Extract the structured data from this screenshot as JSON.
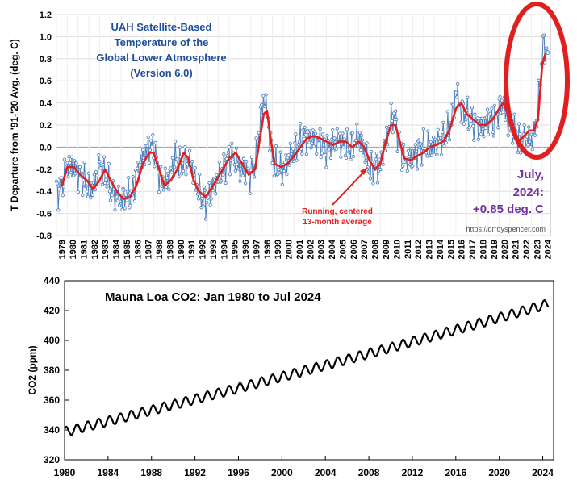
{
  "chart_data": [
    {
      "type": "line",
      "title_lines": [
        "UAH Satellite-Based",
        "Temperature of the",
        "Global Lower Atmosphere",
        "(Version 6.0)"
      ],
      "ylabel": "T Departure from '91-'20 Avg. (deg. C)",
      "xlabel": "",
      "ylim": [
        -0.8,
        1.2
      ],
      "yticks": [
        "1.2",
        "1.0",
        "0.8",
        "0.6",
        "0.4",
        "0.2",
        "0.0",
        "-0.2",
        "-0.4",
        "-0.6",
        "-0.8"
      ],
      "xlim": [
        1979,
        2024.75
      ],
      "xticks": [
        "1979",
        "1980",
        "1981",
        "1982",
        "1983",
        "1984",
        "1985",
        "1986",
        "1987",
        "1988",
        "1989",
        "1990",
        "1991",
        "1992",
        "1993",
        "1994",
        "1995",
        "1996",
        "1997",
        "1998",
        "1999",
        "2000",
        "2001",
        "2002",
        "2003",
        "2004",
        "2005",
        "2006",
        "2007",
        "2008",
        "2009",
        "2010",
        "2011",
        "2012",
        "2013",
        "2014",
        "2015",
        "2016",
        "2017",
        "2018",
        "2019",
        "2020",
        "2021",
        "2022",
        "2023",
        "2024"
      ],
      "grid": true,
      "annotation_lines": [
        "Running, centered",
        "13-month average"
      ],
      "callout_lines": [
        "July,",
        "2024:",
        "+0.85 deg. C"
      ],
      "source": "https://drroyspencer.com",
      "colors": {
        "monthly": "#4f81bd",
        "running": "#e02020",
        "title": "#1f4e9b",
        "callout": "#7030a0",
        "circle": "#e02020"
      },
      "series": [
        {
          "style": "monthly",
          "x": [
            1979.0,
            1979.5,
            1980.0,
            1980.5,
            1981.0,
            1981.5,
            1982.0,
            1982.5,
            1983.0,
            1983.5,
            1984.0,
            1984.5,
            1985.0,
            1985.5,
            1986.0,
            1986.5,
            1987.0,
            1987.5,
            1988.0,
            1988.5,
            1989.0,
            1989.5,
            1990.0,
            1990.5,
            1991.0,
            1991.5,
            1992.0,
            1992.5,
            1993.0,
            1993.5,
            1994.0,
            1994.5,
            1995.0,
            1995.5,
            1996.0,
            1996.5,
            1997.0,
            1997.5,
            1998.0,
            1998.3,
            1998.6,
            1999.0,
            1999.5,
            2000.0,
            2000.5,
            2001.0,
            2001.5,
            2002.0,
            2002.5,
            2003.0,
            2003.5,
            2004.0,
            2004.5,
            2005.0,
            2005.5,
            2006.0,
            2006.5,
            2007.0,
            2007.5,
            2008.0,
            2008.5,
            2009.0,
            2009.5,
            2010.0,
            2010.3,
            2010.6,
            2011.0,
            2011.5,
            2012.0,
            2012.5,
            2013.0,
            2013.5,
            2014.0,
            2014.5,
            2015.0,
            2015.5,
            2016.0,
            2016.2,
            2016.5,
            2017.0,
            2017.5,
            2018.0,
            2018.5,
            2019.0,
            2019.5,
            2020.0,
            2020.3,
            2020.6,
            2021.0,
            2021.5,
            2022.0,
            2022.5,
            2023.0,
            2023.5,
            2023.8,
            2024.0,
            2024.2,
            2024.5
          ],
          "y": [
            -0.45,
            -0.35,
            -0.12,
            -0.2,
            -0.25,
            -0.3,
            -0.45,
            -0.3,
            0.0,
            -0.3,
            -0.45,
            -0.5,
            -0.5,
            -0.4,
            -0.45,
            -0.1,
            -0.05,
            0.05,
            0.05,
            -0.3,
            -0.3,
            -0.2,
            0.05,
            -0.2,
            -0.2,
            -0.1,
            -0.35,
            -0.5,
            -0.55,
            -0.35,
            -0.3,
            -0.2,
            -0.05,
            -0.15,
            -0.3,
            -0.2,
            -0.25,
            -0.05,
            0.5,
            0.55,
            0.2,
            -0.15,
            -0.2,
            -0.25,
            -0.05,
            0.0,
            0.1,
            0.15,
            0.05,
            0.05,
            0.0,
            -0.1,
            0.05,
            0.1,
            0.0,
            -0.05,
            0.05,
            0.15,
            -0.05,
            -0.3,
            -0.15,
            -0.2,
            0.05,
            0.3,
            0.35,
            0.15,
            -0.15,
            -0.1,
            -0.1,
            0.05,
            0.05,
            0.0,
            0.0,
            0.1,
            0.1,
            0.2,
            0.65,
            0.55,
            0.25,
            0.3,
            0.2,
            0.2,
            0.15,
            0.3,
            0.2,
            0.35,
            0.4,
            0.25,
            0.1,
            0.2,
            0.0,
            0.05,
            -0.05,
            0.25,
            0.75,
            0.95,
            1.05,
            0.85
          ]
        },
        {
          "style": "running",
          "x": [
            1979.5,
            1980.0,
            1980.6,
            1981.2,
            1981.8,
            1982.4,
            1983.0,
            1983.5,
            1984.0,
            1984.6,
            1985.2,
            1985.8,
            1986.4,
            1987.0,
            1987.6,
            1988.0,
            1988.5,
            1989.0,
            1989.6,
            1990.2,
            1990.8,
            1991.2,
            1991.7,
            1992.2,
            1992.8,
            1993.3,
            1993.8,
            1994.4,
            1995.0,
            1995.6,
            1996.2,
            1996.8,
            1997.4,
            1997.8,
            1998.2,
            1998.5,
            1998.8,
            1999.2,
            1999.8,
            2000.4,
            2001.0,
            2001.6,
            2002.2,
            2002.8,
            2003.4,
            2004.0,
            2004.6,
            2005.2,
            2005.8,
            2006.4,
            2007.0,
            2007.5,
            2008.0,
            2008.5,
            2009.0,
            2009.5,
            2010.0,
            2010.4,
            2010.8,
            2011.2,
            2011.8,
            2012.4,
            2013.0,
            2013.6,
            2014.2,
            2014.8,
            2015.4,
            2016.0,
            2016.5,
            2017.0,
            2017.6,
            2018.2,
            2018.8,
            2019.4,
            2020.0,
            2020.4,
            2020.8,
            2021.3,
            2021.8,
            2022.3,
            2022.8,
            2023.2,
            2023.6,
            2024.0,
            2024.3
          ],
          "y": [
            -0.35,
            -0.18,
            -0.18,
            -0.25,
            -0.3,
            -0.38,
            -0.3,
            -0.2,
            -0.3,
            -0.4,
            -0.47,
            -0.45,
            -0.35,
            -0.15,
            -0.05,
            -0.05,
            -0.2,
            -0.35,
            -0.3,
            -0.2,
            -0.05,
            -0.1,
            -0.3,
            -0.4,
            -0.45,
            -0.38,
            -0.3,
            -0.2,
            -0.1,
            -0.05,
            -0.15,
            -0.25,
            -0.2,
            0.05,
            0.3,
            0.33,
            0.1,
            -0.15,
            -0.18,
            -0.15,
            -0.08,
            0.0,
            0.08,
            0.1,
            0.08,
            0.05,
            0.02,
            0.05,
            0.05,
            0.0,
            0.05,
            0.0,
            -0.12,
            -0.2,
            -0.15,
            0.05,
            0.2,
            0.2,
            0.05,
            -0.1,
            -0.12,
            -0.08,
            -0.05,
            0.0,
            0.02,
            0.05,
            0.15,
            0.35,
            0.4,
            0.3,
            0.25,
            0.2,
            0.2,
            0.25,
            0.35,
            0.4,
            0.3,
            0.15,
            0.05,
            0.1,
            0.15,
            0.15,
            0.25,
            0.75,
            0.85
          ]
        }
      ]
    },
    {
      "type": "line",
      "title": "Mauna Loa CO2:  Jan 1980 to Jul 2024",
      "ylabel": "CO2 (ppm)",
      "xlabel": "",
      "ylim": [
        320,
        440
      ],
      "yticks": [
        "440",
        "420",
        "400",
        "380",
        "360",
        "340",
        "320"
      ],
      "xlim": [
        1980,
        2025
      ],
      "xticks": [
        "1980",
        "1984",
        "1988",
        "1992",
        "1996",
        "2000",
        "2004",
        "2008",
        "2012",
        "2016",
        "2020",
        "2024"
      ],
      "grid": false,
      "trend": {
        "start_year": 1980.0,
        "end_year": 2024.55,
        "start_ppm": 338.7,
        "end_ppm": 424.6,
        "curvature_ppm": 6.5,
        "seasonal_amplitude_ppm": 3.2
      }
    }
  ]
}
